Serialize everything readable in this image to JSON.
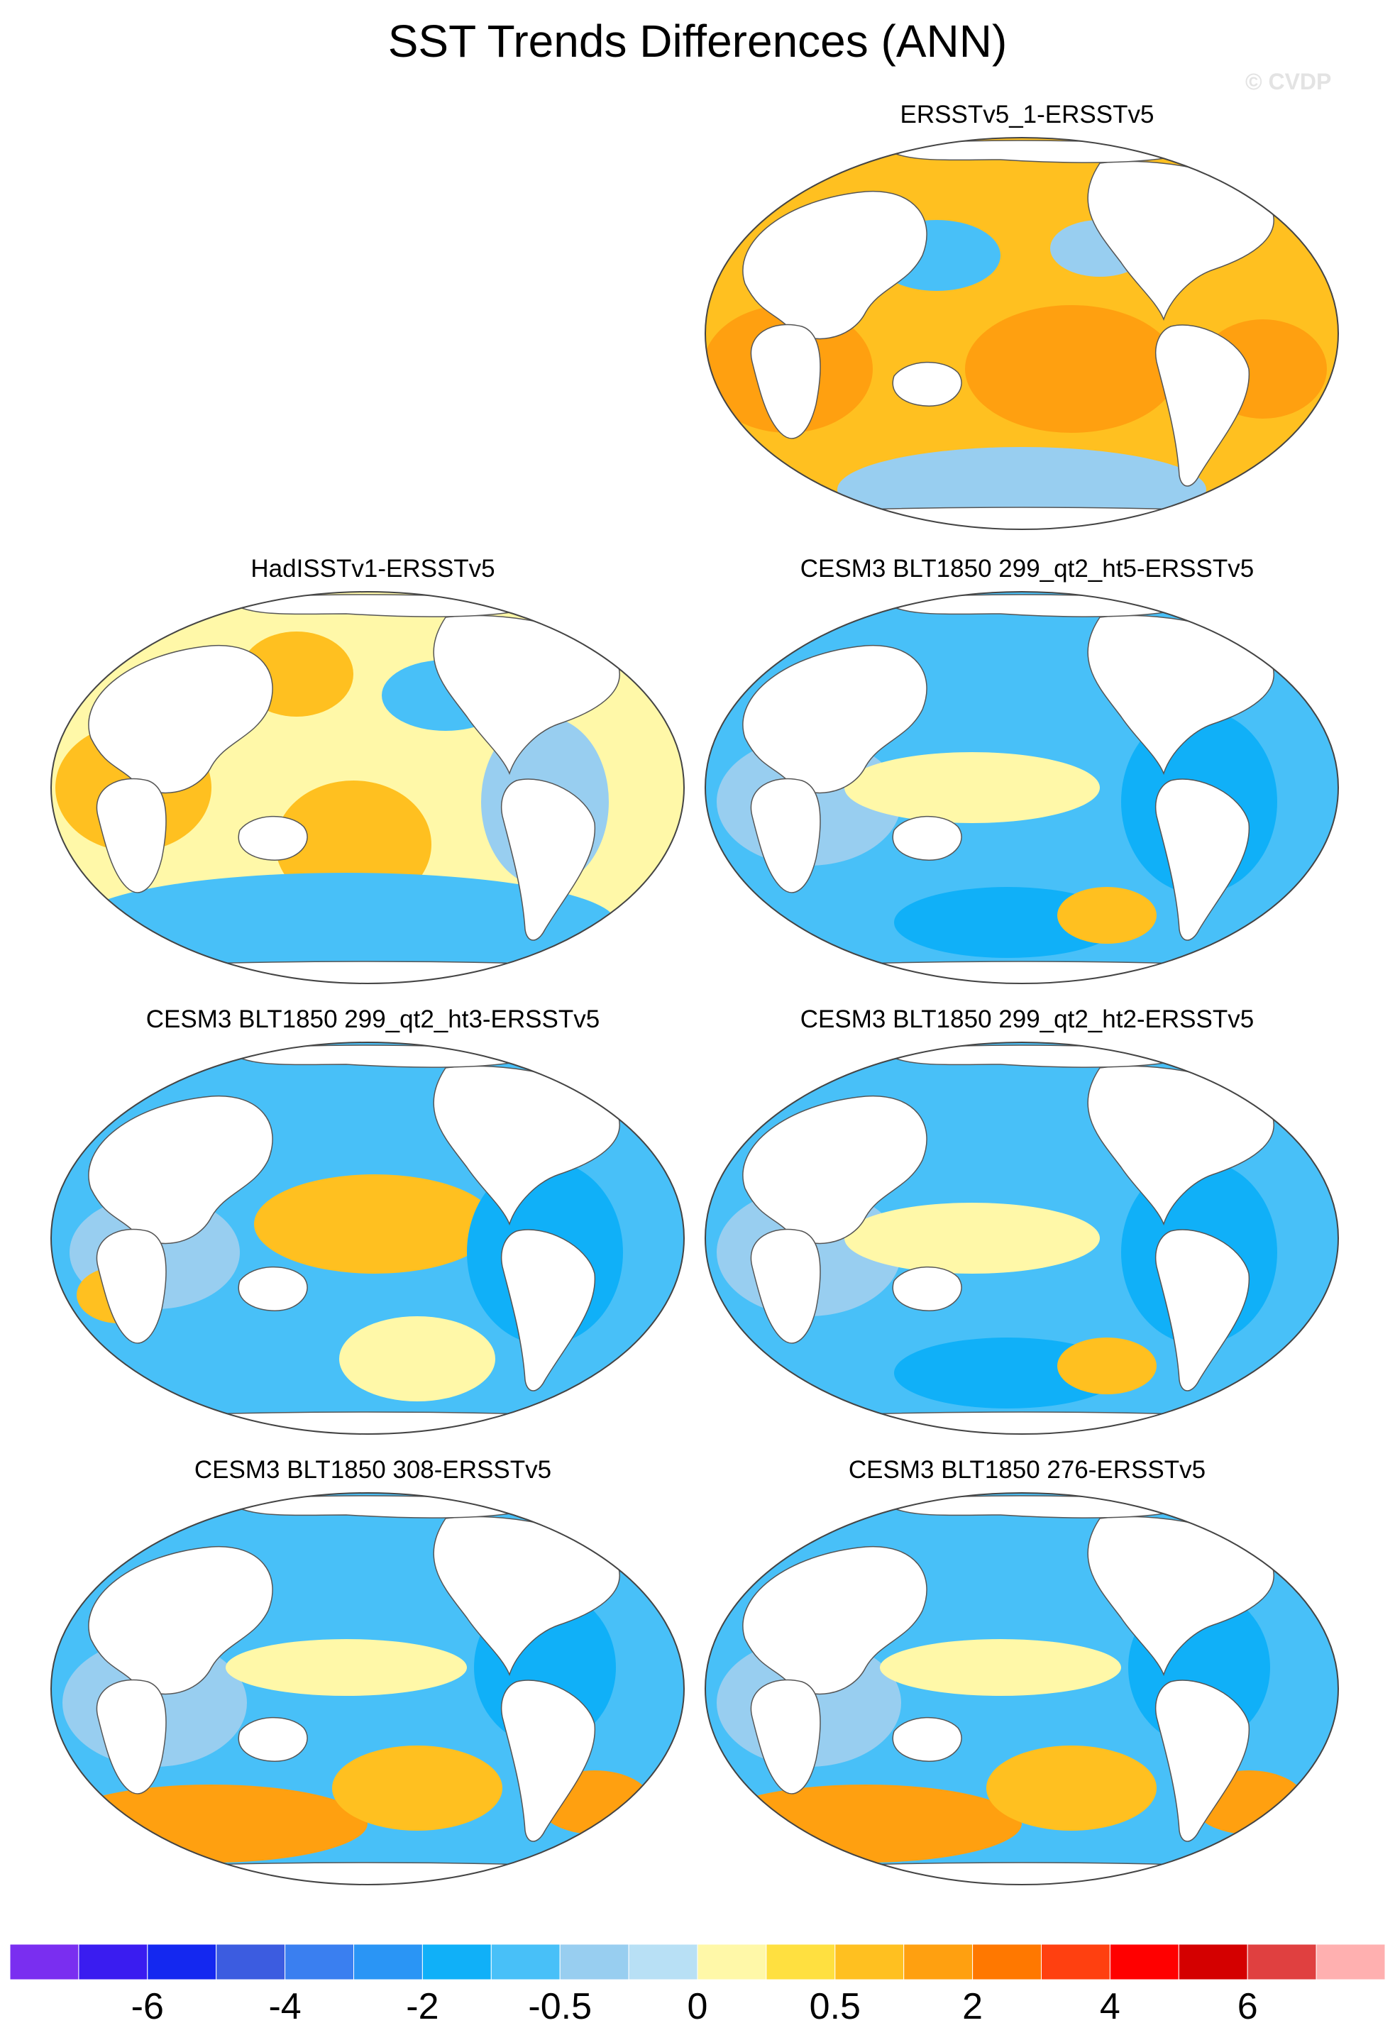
{
  "title": "SST Trends Differences (ANN)",
  "watermark": "© CVDP",
  "panels": [
    {
      "title": "ERSSTv5_1-ERSSTv5",
      "pattern": "warm",
      "slot": 1
    },
    {
      "title": "HadISSTv1-ERSSTv5",
      "pattern": "mixed",
      "slot": 2
    },
    {
      "title": "CESM3 BLT1850 299_qt2_ht5-ERSSTv5",
      "pattern": "cool",
      "slot": 3
    },
    {
      "title": "CESM3 BLT1850 299_qt2_ht3-ERSSTv5",
      "pattern": "cool-pacific-warm",
      "slot": 4
    },
    {
      "title": "CESM3 BLT1850 299_qt2_ht2-ERSSTv5",
      "pattern": "cool",
      "slot": 5
    },
    {
      "title": "CESM3 BLT1850 308-ERSSTv5",
      "pattern": "cool-southern-warm",
      "slot": 6
    },
    {
      "title": "CESM3 BLT1850 276-ERSSTv5",
      "pattern": "cool-southern-warm",
      "slot": 7
    }
  ],
  "colorbar": {
    "colors": [
      "#7a2ef0",
      "#3a1cf0",
      "#1428f0",
      "#3c5ce0",
      "#3a7ff0",
      "#2a95f5",
      "#10b0f8",
      "#48c0f8",
      "#98cef0",
      "#b8e0f5",
      "#fff8a8",
      "#ffe040",
      "#ffc020",
      "#ffa010",
      "#ff7800",
      "#ff4010",
      "#ff0000",
      "#d40000",
      "#e04040",
      "#ffb0b0"
    ],
    "labels": [
      "-6",
      "-4",
      "-2",
      "-0.5",
      "0",
      "0.5",
      "2",
      "4",
      "6"
    ],
    "label_boundaries": [
      2,
      4,
      6,
      8,
      10,
      12,
      14,
      16,
      18
    ]
  },
  "palette": {
    "ocean_cool": "#48c0f8",
    "ocean_deepcool": "#10b0f8",
    "ocean_light": "#98cef0",
    "ocean_warm": "#ffc020",
    "ocean_warmlight": "#fff8a8",
    "ocean_orange": "#ffa010",
    "land": "#ffffff",
    "outline": "#555555"
  }
}
